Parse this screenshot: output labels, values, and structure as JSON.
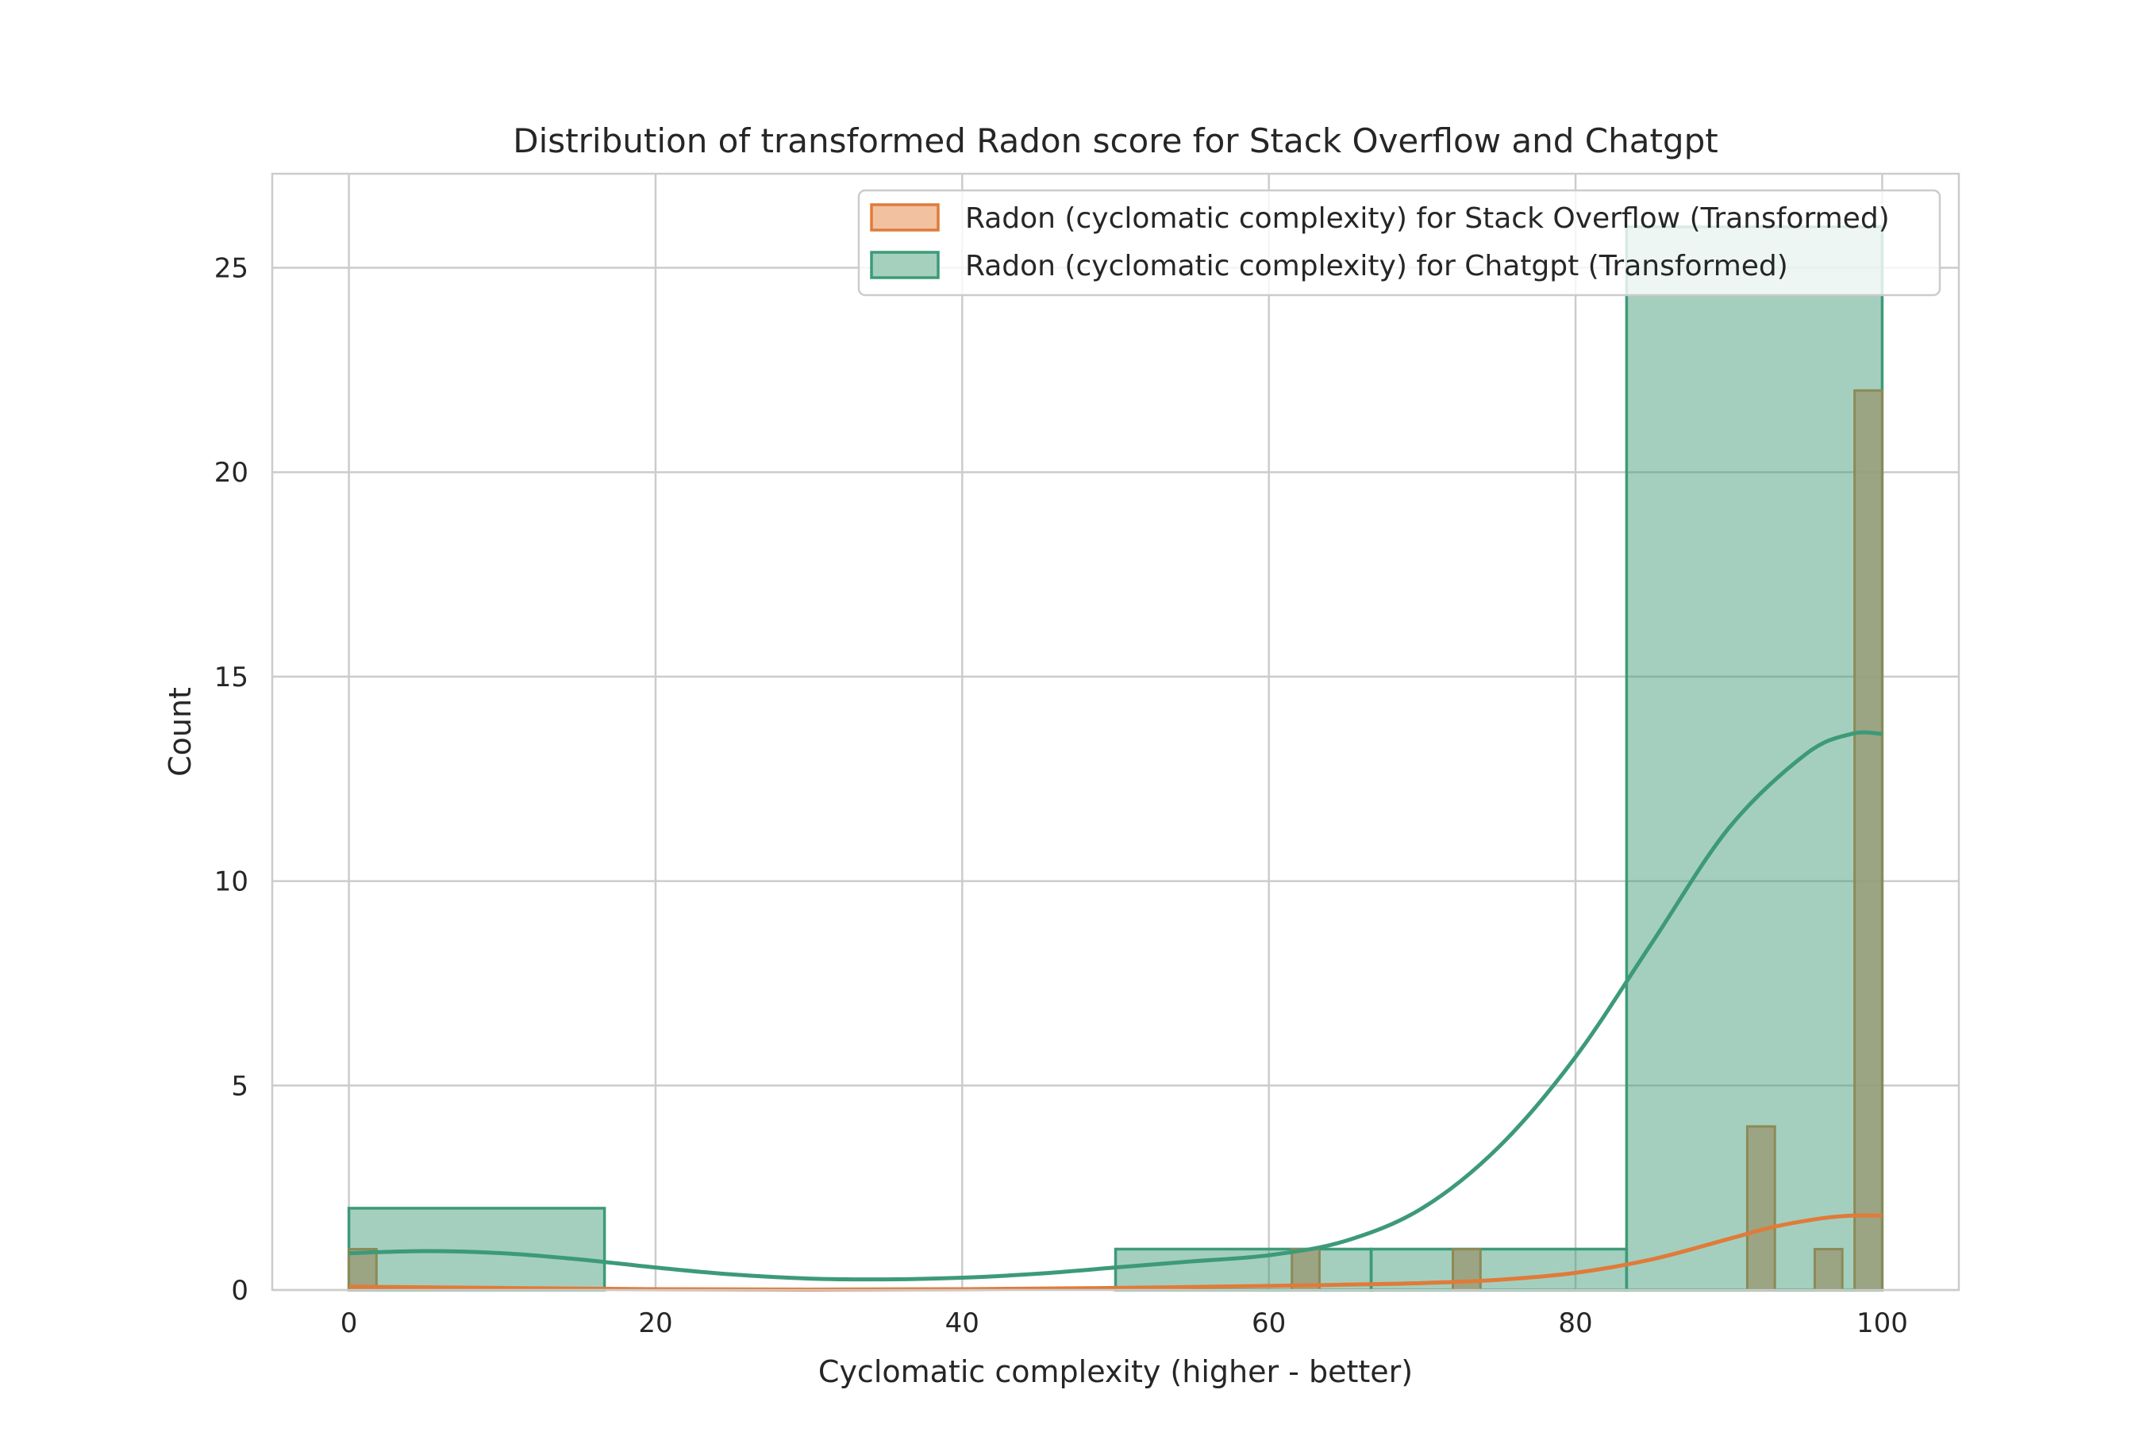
{
  "chart_data": {
    "type": "histogram",
    "title": "Distribution of transformed Radon score for Stack Overflow and Chatgpt",
    "xlabel": "Cyclomatic complexity (higher - better)",
    "ylabel": "Count",
    "xlim": [
      -5,
      105
    ],
    "ylim": [
      0,
      27.3
    ],
    "xticks": [
      0,
      20,
      40,
      60,
      80,
      100
    ],
    "yticks": [
      0,
      5,
      10,
      15,
      20,
      25
    ],
    "grid": true,
    "legend_position": "top-right",
    "series": [
      {
        "name": "Radon (cyclomatic complexity) for Stack Overflow (Transformed)",
        "color": "#e07b39",
        "bins": [
          {
            "x0": 0,
            "x1": 1.8,
            "count": 1
          },
          {
            "x0": 61.5,
            "x1": 63.3,
            "count": 1
          },
          {
            "x0": 72.0,
            "x1": 73.8,
            "count": 1
          },
          {
            "x0": 91.2,
            "x1": 93.0,
            "count": 4
          },
          {
            "x0": 95.6,
            "x1": 97.4,
            "count": 1
          },
          {
            "x0": 98.2,
            "x1": 100,
            "count": 22
          }
        ],
        "kde": {
          "x": [
            0,
            10,
            20,
            30,
            40,
            50,
            60,
            65,
            70,
            75,
            80,
            85,
            90,
            93,
            96,
            98,
            100
          ],
          "y": [
            0.08,
            0.05,
            0.02,
            0.01,
            0.02,
            0.05,
            0.1,
            0.13,
            0.17,
            0.25,
            0.42,
            0.75,
            1.25,
            1.55,
            1.75,
            1.82,
            1.82
          ]
        }
      },
      {
        "name": "Radon (cyclomatic complexity) for Chatgpt (Transformed)",
        "color": "#3d9a78",
        "bins": [
          {
            "x0": 0,
            "x1": 16.67,
            "count": 2
          },
          {
            "x0": 16.67,
            "x1": 33.33,
            "count": 0
          },
          {
            "x0": 33.33,
            "x1": 50,
            "count": 0
          },
          {
            "x0": 50,
            "x1": 66.67,
            "count": 1
          },
          {
            "x0": 66.67,
            "x1": 83.33,
            "count": 1
          },
          {
            "x0": 83.33,
            "x1": 100,
            "count": 26
          }
        ],
        "kde": {
          "x": [
            0,
            5,
            10,
            15,
            20,
            25,
            30,
            35,
            40,
            45,
            50,
            55,
            60,
            65,
            70,
            75,
            80,
            85,
            90,
            95,
            98,
            100
          ],
          "y": [
            0.9,
            0.95,
            0.9,
            0.75,
            0.55,
            0.38,
            0.28,
            0.26,
            0.3,
            0.4,
            0.55,
            0.7,
            0.85,
            1.2,
            2.0,
            3.5,
            5.7,
            8.5,
            11.3,
            13.1,
            13.6,
            13.6
          ]
        }
      }
    ]
  }
}
